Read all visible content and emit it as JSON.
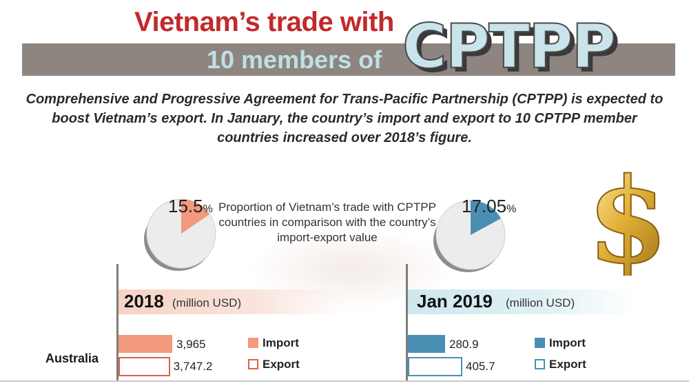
{
  "title": {
    "line1": "Vietnam’s trade with",
    "line2": "10 members of",
    "highlight": "CPTPP"
  },
  "intro": "Comprehensive and Progressive Agreement for Trans-Pacific Partnership (CPTPP) is expected to boost Vietnam’s export. In January, the country’s import and export to 10 CPTPP member countries increased over 2018’s figure.",
  "proportion_note": "Proportion of Vietnam’s trade with CPTPP countries in comparison with the country’s import-export value",
  "decor_icon": "dollar-sign-icon",
  "colors": {
    "title_red": "#c22a2b",
    "band_gray": "#8e8580",
    "line2_blue": "#bfe0e6",
    "cptpp_fill": "#c9e4ea",
    "color_2018": "#f19a7d",
    "color_2019": "#4a8fb3",
    "pie_rest": "#ececec"
  },
  "chart_data": [
    {
      "type": "pie",
      "period": "2018",
      "label": "15.5",
      "label_unit": "%",
      "value_pct": 15.5,
      "color": "#f19a7d"
    },
    {
      "type": "pie",
      "period": "Jan 2019",
      "label": "17.05",
      "label_unit": "%",
      "value_pct": 17.05,
      "color": "#4a8fb3"
    },
    {
      "type": "bar",
      "title": "2018",
      "unit": "(million USD)",
      "categories": [
        "Australia"
      ],
      "series": [
        {
          "name": "Import",
          "values": [
            3965
          ],
          "labels": [
            "3,965"
          ],
          "style": "filled",
          "color": "#f19a7d"
        },
        {
          "name": "Export",
          "values": [
            3747.2
          ],
          "labels": [
            "3,747.2"
          ],
          "style": "outline",
          "color": "#e0604a"
        }
      ]
    },
    {
      "type": "bar",
      "title": "Jan 2019",
      "unit": "(million USD)",
      "categories": [
        "Australia"
      ],
      "series": [
        {
          "name": "Import",
          "values": [
            280.9
          ],
          "labels": [
            "280.9"
          ],
          "style": "filled",
          "color": "#4a8fb3"
        },
        {
          "name": "Export",
          "values": [
            405.7
          ],
          "labels": [
            "405.7"
          ],
          "style": "outline",
          "color": "#4a8fb3"
        }
      ]
    }
  ]
}
